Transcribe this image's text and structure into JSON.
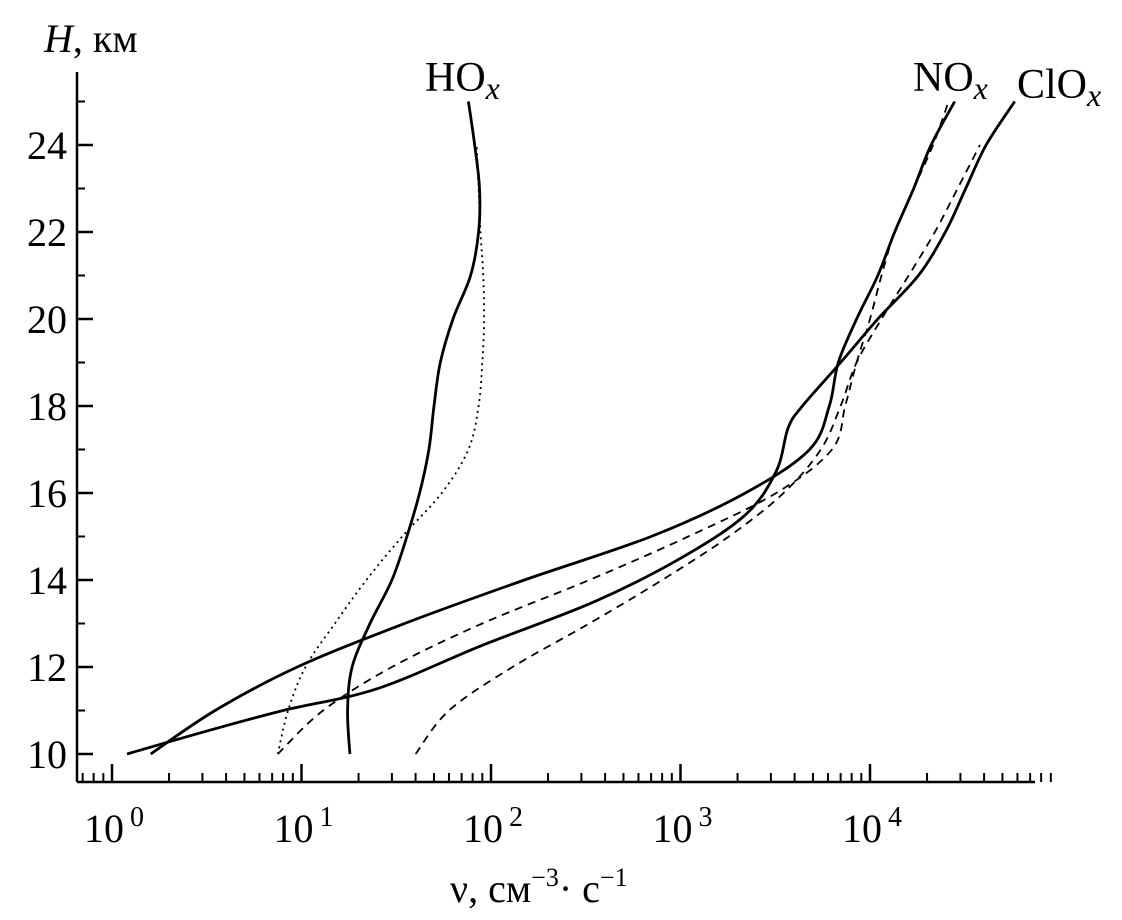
{
  "chart_data": {
    "type": "line",
    "title": "",
    "xlabel": {
      "base": "ν, см",
      "sup1": "−3",
      "mid": "· с",
      "sup2": "−1"
    },
    "ylabel": {
      "italic": "H",
      "rest": ", км"
    },
    "xscale": "log",
    "xlim": [
      0.7,
      90000
    ],
    "ylim": [
      9.4,
      25.5
    ],
    "x_ticks": [
      {
        "value": 1,
        "base": "10",
        "exp": "0"
      },
      {
        "value": 10,
        "base": "10",
        "exp": "1"
      },
      {
        "value": 100,
        "base": "10",
        "exp": "2"
      },
      {
        "value": 1000,
        "base": "10",
        "exp": "3"
      },
      {
        "value": 10000,
        "base": "10",
        "exp": "4"
      }
    ],
    "y_ticks": [
      10,
      12,
      14,
      16,
      18,
      20,
      22,
      24
    ],
    "series": [
      {
        "name": "HOx solid",
        "label_base": "HO",
        "label_sub": "x",
        "style": "solid",
        "points": [
          [
            18,
            10
          ],
          [
            17.5,
            11
          ],
          [
            18.5,
            12
          ],
          [
            23,
            13
          ],
          [
            30,
            14
          ],
          [
            36,
            15
          ],
          [
            42,
            16
          ],
          [
            47,
            17
          ],
          [
            50,
            18
          ],
          [
            54,
            19
          ],
          [
            63,
            20
          ],
          [
            78,
            21
          ],
          [
            86,
            22
          ],
          [
            87,
            23
          ],
          [
            82,
            24
          ],
          [
            76,
            25
          ]
        ]
      },
      {
        "name": "HOx dotted",
        "style": "dotted",
        "points": [
          [
            7.5,
            10
          ],
          [
            8.5,
            11
          ],
          [
            10.5,
            12
          ],
          [
            15,
            13
          ],
          [
            22,
            14
          ],
          [
            34,
            15
          ],
          [
            55,
            16
          ],
          [
            76,
            17
          ],
          [
            86,
            18
          ],
          [
            90,
            19
          ],
          [
            92,
            20
          ],
          [
            91,
            21
          ],
          [
            88,
            22
          ],
          [
            86,
            23
          ],
          [
            84,
            24
          ]
        ]
      },
      {
        "name": "NOx solid",
        "label_base": "NO",
        "label_sub": "x",
        "style": "solid",
        "points": [
          [
            1.6,
            10
          ],
          [
            3.5,
            11
          ],
          [
            9.5,
            12
          ],
          [
            35,
            13
          ],
          [
            150,
            14
          ],
          [
            700,
            15
          ],
          [
            2200,
            16
          ],
          [
            4800,
            17
          ],
          [
            6100,
            18
          ],
          [
            6800,
            19
          ],
          [
            8500,
            20
          ],
          [
            11000,
            21
          ],
          [
            13500,
            22
          ],
          [
            17000,
            23
          ],
          [
            21000,
            24
          ],
          [
            28000,
            25
          ]
        ]
      },
      {
        "name": "NOx dashed",
        "style": "dashed",
        "points": [
          [
            7.5,
            10
          ],
          [
            13,
            11
          ],
          [
            30,
            12
          ],
          [
            90,
            13
          ],
          [
            330,
            14
          ],
          [
            1100,
            15
          ],
          [
            3200,
            16
          ],
          [
            6300,
            17
          ],
          [
            7400,
            18
          ],
          [
            8500,
            19
          ],
          [
            10000,
            20
          ],
          [
            11500,
            21
          ],
          [
            13500,
            22
          ],
          [
            17000,
            23
          ],
          [
            21500,
            24
          ],
          [
            26000,
            25
          ]
        ]
      },
      {
        "name": "ClOx solid",
        "label_base": "ClO",
        "label_sub": "x",
        "style": "solid",
        "points": [
          [
            1.2,
            10
          ],
          [
            3,
            10.5
          ],
          [
            8,
            11
          ],
          [
            25,
            11.5
          ],
          [
            90,
            12.5
          ],
          [
            350,
            13.5
          ],
          [
            1000,
            14.5
          ],
          [
            2200,
            15.5
          ],
          [
            3200,
            16.5
          ],
          [
            3700,
            17.5
          ],
          [
            4400,
            18
          ],
          [
            7000,
            19
          ],
          [
            11000,
            20
          ],
          [
            18000,
            21
          ],
          [
            25000,
            22
          ],
          [
            32000,
            23
          ],
          [
            41000,
            24
          ],
          [
            58000,
            25
          ]
        ]
      },
      {
        "name": "ClOx dashed",
        "style": "dashed",
        "points": [
          [
            40,
            10
          ],
          [
            60,
            11
          ],
          [
            130,
            12
          ],
          [
            330,
            13
          ],
          [
            800,
            14
          ],
          [
            1800,
            15
          ],
          [
            3500,
            16
          ],
          [
            5500,
            17
          ],
          [
            7000,
            18
          ],
          [
            8500,
            19
          ],
          [
            11500,
            20
          ],
          [
            16000,
            21
          ],
          [
            22000,
            22
          ],
          [
            29000,
            23
          ],
          [
            38000,
            24
          ]
        ]
      }
    ]
  }
}
